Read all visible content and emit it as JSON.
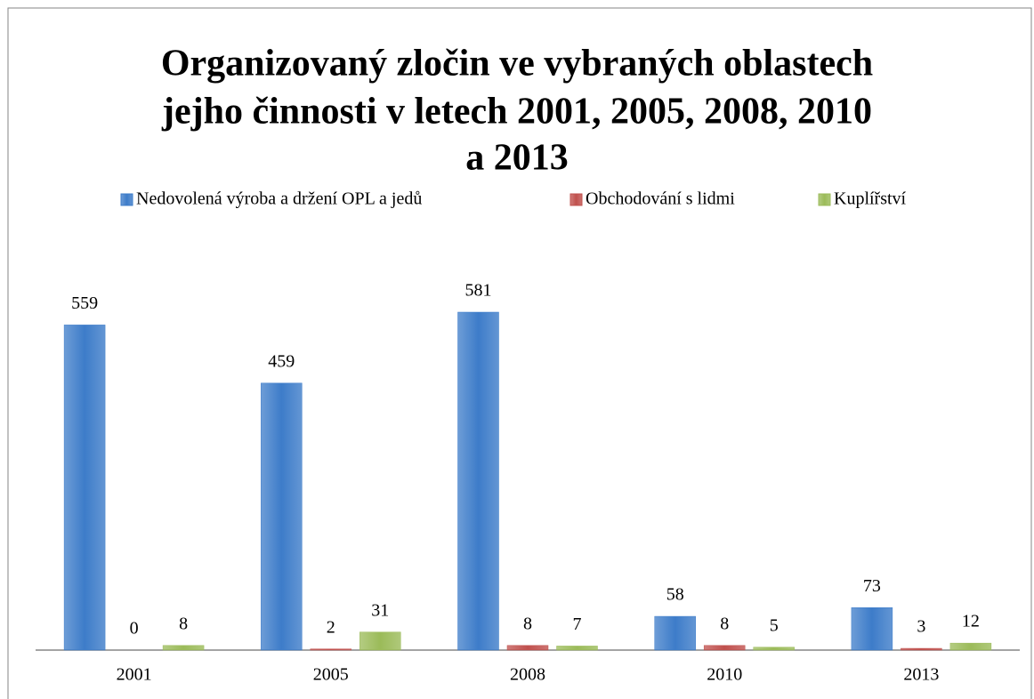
{
  "chart_data": {
    "type": "bar",
    "title": [
      "Organizovaný zločin ve vybraných oblastech",
      "jejho činnosti v letech 2001, 2005, 2008, 2010",
      "a 2013"
    ],
    "categories": [
      "2001",
      "2005",
      "2008",
      "2010",
      "2013"
    ],
    "series": [
      {
        "name": "Nedovolená výroba a držení OPL a jedů",
        "color": "#3d7cc9",
        "values": [
          559,
          459,
          581,
          58,
          73
        ]
      },
      {
        "name": "Obchodování s lidmi",
        "color": "#c0504d",
        "values": [
          0,
          2,
          8,
          8,
          3
        ]
      },
      {
        "name": "Kuplířství",
        "color": "#9bbb59",
        "values": [
          8,
          31,
          7,
          5,
          12
        ]
      }
    ],
    "legend": "top"
  }
}
